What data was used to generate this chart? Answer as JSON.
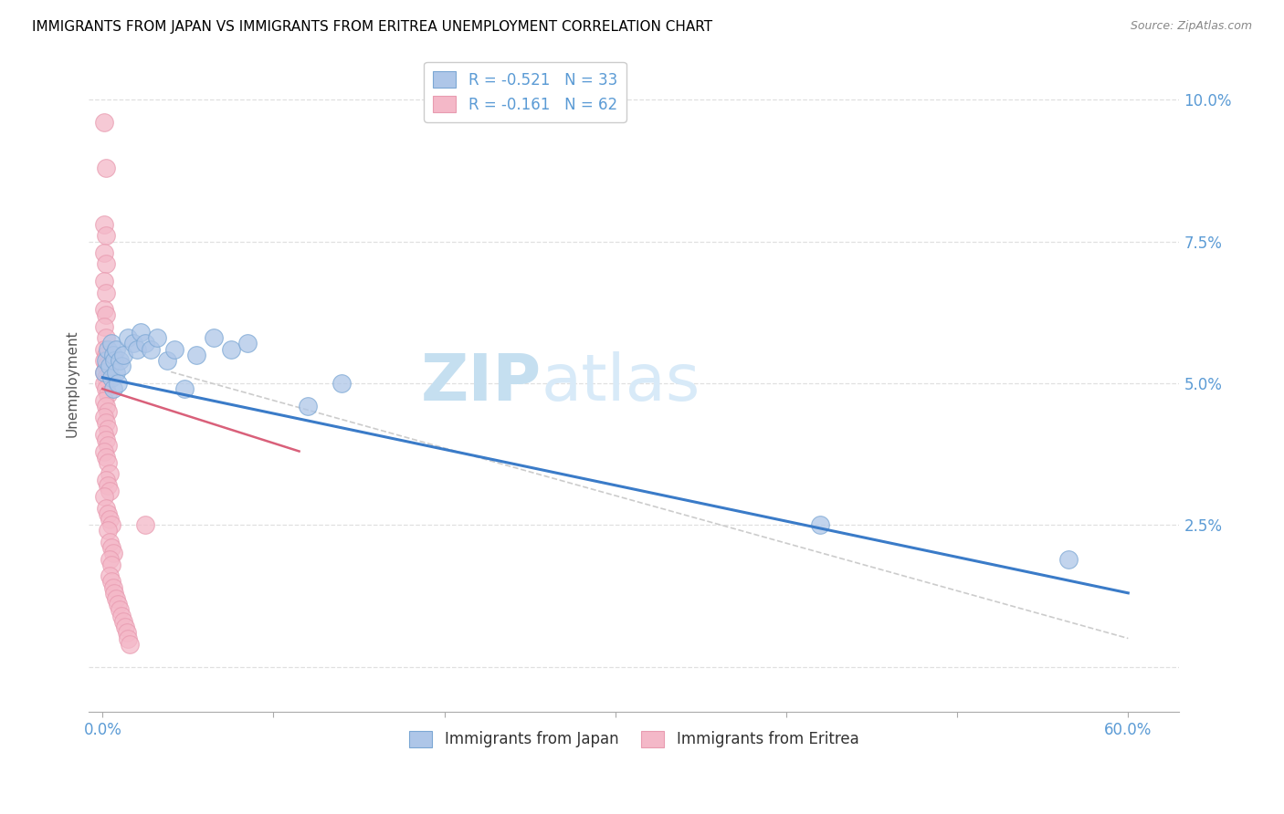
{
  "title": "IMMIGRANTS FROM JAPAN VS IMMIGRANTS FROM ERITREA UNEMPLOYMENT CORRELATION CHART",
  "source": "Source: ZipAtlas.com",
  "ylabel": "Unemployment",
  "yticks": [
    0.0,
    0.025,
    0.05,
    0.075,
    0.1
  ],
  "ytick_labels": [
    "",
    "2.5%",
    "5.0%",
    "7.5%",
    "10.0%"
  ],
  "xticks": [
    0.0,
    0.1,
    0.2,
    0.3,
    0.4,
    0.5,
    0.6
  ],
  "xtick_labels_show": [
    "0.0%",
    "",
    "",
    "",
    "",
    "",
    "60.0%"
  ],
  "xlim": [
    -0.008,
    0.63
  ],
  "ylim": [
    -0.008,
    0.108
  ],
  "legend_label_1": "R = -0.521   N = 33",
  "legend_label_2": "R = -0.161   N = 62",
  "watermark_zip": "ZIP",
  "watermark_atlas": "atlas",
  "japan_color": "#aec6e8",
  "eritrea_color": "#f4b8c8",
  "japan_edge": "#7ba7d4",
  "eritrea_edge": "#e89bb0",
  "japan_points": [
    [
      0.001,
      0.052
    ],
    [
      0.002,
      0.054
    ],
    [
      0.003,
      0.056
    ],
    [
      0.004,
      0.053
    ],
    [
      0.005,
      0.057
    ],
    [
      0.005,
      0.051
    ],
    [
      0.006,
      0.055
    ],
    [
      0.006,
      0.049
    ],
    [
      0.007,
      0.054
    ],
    [
      0.008,
      0.052
    ],
    [
      0.008,
      0.056
    ],
    [
      0.009,
      0.05
    ],
    [
      0.01,
      0.054
    ],
    [
      0.011,
      0.053
    ],
    [
      0.012,
      0.055
    ],
    [
      0.015,
      0.058
    ],
    [
      0.018,
      0.057
    ],
    [
      0.02,
      0.056
    ],
    [
      0.022,
      0.059
    ],
    [
      0.025,
      0.057
    ],
    [
      0.028,
      0.056
    ],
    [
      0.032,
      0.058
    ],
    [
      0.038,
      0.054
    ],
    [
      0.042,
      0.056
    ],
    [
      0.048,
      0.049
    ],
    [
      0.055,
      0.055
    ],
    [
      0.065,
      0.058
    ],
    [
      0.075,
      0.056
    ],
    [
      0.085,
      0.057
    ],
    [
      0.12,
      0.046
    ],
    [
      0.14,
      0.05
    ],
    [
      0.42,
      0.025
    ],
    [
      0.565,
      0.019
    ]
  ],
  "eritrea_points": [
    [
      0.001,
      0.096
    ],
    [
      0.002,
      0.088
    ],
    [
      0.001,
      0.078
    ],
    [
      0.002,
      0.076
    ],
    [
      0.001,
      0.073
    ],
    [
      0.002,
      0.071
    ],
    [
      0.001,
      0.068
    ],
    [
      0.002,
      0.066
    ],
    [
      0.001,
      0.063
    ],
    [
      0.002,
      0.062
    ],
    [
      0.001,
      0.06
    ],
    [
      0.002,
      0.058
    ],
    [
      0.001,
      0.056
    ],
    [
      0.002,
      0.055
    ],
    [
      0.001,
      0.054
    ],
    [
      0.002,
      0.053
    ],
    [
      0.001,
      0.052
    ],
    [
      0.002,
      0.051
    ],
    [
      0.001,
      0.05
    ],
    [
      0.002,
      0.049
    ],
    [
      0.003,
      0.048
    ],
    [
      0.001,
      0.047
    ],
    [
      0.002,
      0.046
    ],
    [
      0.003,
      0.045
    ],
    [
      0.001,
      0.044
    ],
    [
      0.002,
      0.043
    ],
    [
      0.003,
      0.042
    ],
    [
      0.001,
      0.041
    ],
    [
      0.002,
      0.04
    ],
    [
      0.003,
      0.039
    ],
    [
      0.001,
      0.038
    ],
    [
      0.002,
      0.037
    ],
    [
      0.003,
      0.036
    ],
    [
      0.004,
      0.034
    ],
    [
      0.002,
      0.033
    ],
    [
      0.003,
      0.032
    ],
    [
      0.004,
      0.031
    ],
    [
      0.001,
      0.03
    ],
    [
      0.002,
      0.028
    ],
    [
      0.003,
      0.027
    ],
    [
      0.004,
      0.026
    ],
    [
      0.005,
      0.025
    ],
    [
      0.003,
      0.024
    ],
    [
      0.004,
      0.022
    ],
    [
      0.005,
      0.021
    ],
    [
      0.006,
      0.02
    ],
    [
      0.004,
      0.019
    ],
    [
      0.005,
      0.018
    ],
    [
      0.025,
      0.025
    ],
    [
      0.004,
      0.016
    ],
    [
      0.005,
      0.015
    ],
    [
      0.006,
      0.014
    ],
    [
      0.007,
      0.013
    ],
    [
      0.008,
      0.012
    ],
    [
      0.009,
      0.011
    ],
    [
      0.01,
      0.01
    ],
    [
      0.011,
      0.009
    ],
    [
      0.012,
      0.008
    ],
    [
      0.013,
      0.007
    ],
    [
      0.014,
      0.006
    ],
    [
      0.015,
      0.005
    ],
    [
      0.016,
      0.004
    ]
  ],
  "blue_line_x": [
    0.0,
    0.6
  ],
  "blue_line_y": [
    0.051,
    0.013
  ],
  "pink_line_x": [
    0.0,
    0.115
  ],
  "pink_line_y": [
    0.049,
    0.038
  ],
  "gray_line_x": [
    0.04,
    0.6
  ],
  "gray_line_y": [
    0.052,
    0.005
  ],
  "axis_color": "#cccccc",
  "grid_color": "#e0e0e0",
  "title_fontsize": 11,
  "source_fontsize": 9,
  "watermark_color_zip": "#c5dff0",
  "watermark_color_atlas": "#d8eaf8",
  "watermark_fontsize": 52
}
